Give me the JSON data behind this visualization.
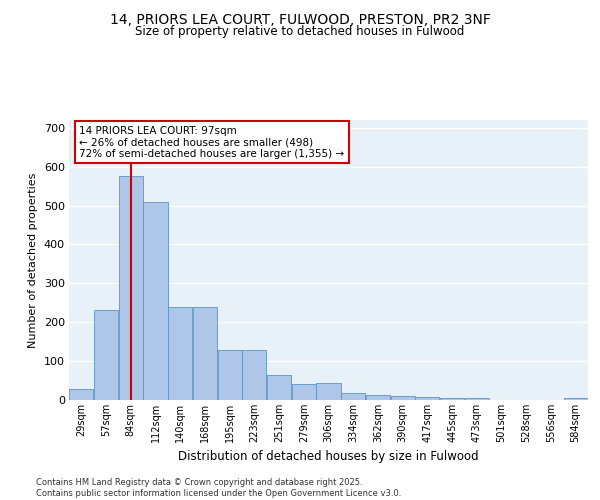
{
  "title1": "14, PRIORS LEA COURT, FULWOOD, PRESTON, PR2 3NF",
  "title2": "Size of property relative to detached houses in Fulwood",
  "xlabel": "Distribution of detached houses by size in Fulwood",
  "ylabel": "Number of detached properties",
  "bin_labels": [
    "29sqm",
    "57sqm",
    "84sqm",
    "112sqm",
    "140sqm",
    "168sqm",
    "195sqm",
    "223sqm",
    "251sqm",
    "279sqm",
    "306sqm",
    "334sqm",
    "362sqm",
    "390sqm",
    "417sqm",
    "445sqm",
    "473sqm",
    "501sqm",
    "528sqm",
    "556sqm",
    "584sqm"
  ],
  "bar_heights": [
    28,
    232,
    575,
    510,
    240,
    240,
    128,
    128,
    65,
    40,
    45,
    18,
    12,
    10,
    8,
    6,
    4,
    0,
    0,
    0,
    4
  ],
  "bar_color": "#aec6e8",
  "bar_edge_color": "#5a96c8",
  "vline_x": 2,
  "vline_color": "#cc0000",
  "annotation_text": "14 PRIORS LEA COURT: 97sqm\n← 26% of detached houses are smaller (498)\n72% of semi-detached houses are larger (1,355) →",
  "annotation_box_color": "#cc0000",
  "ylim": [
    0,
    720
  ],
  "yticks": [
    0,
    100,
    200,
    300,
    400,
    500,
    600,
    700
  ],
  "background_color": "#e8f0f8",
  "grid_color": "#ffffff",
  "footer_text": "Contains HM Land Registry data © Crown copyright and database right 2025.\nContains public sector information licensed under the Open Government Licence v3.0.",
  "fig_bg_color": "#ffffff"
}
